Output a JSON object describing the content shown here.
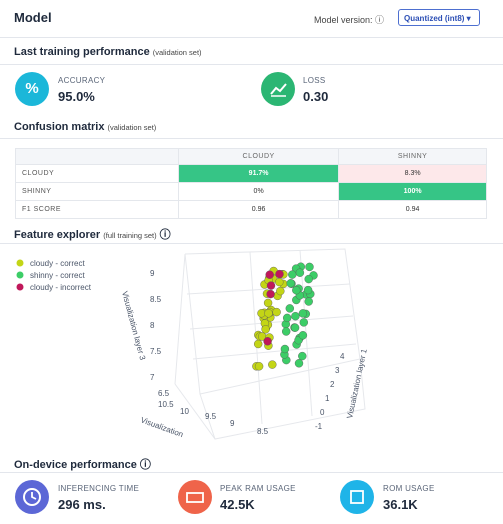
{
  "header": {
    "title": "Model",
    "version_label": "Model version:",
    "version": "Quantized (int8)"
  },
  "training": {
    "title": "Last training performance",
    "note": "(validation set)",
    "metrics": [
      {
        "label": "ACCURACY",
        "value": "95.0%"
      },
      {
        "label": "LOSS",
        "value": "0.30"
      }
    ]
  },
  "confusion": {
    "title": "Confusion matrix",
    "note": "(validation set)",
    "columns": [
      "CLOUDY",
      "SHINNY"
    ],
    "rows": [
      [
        "CLOUDY",
        "91.7%",
        "8.3%"
      ],
      [
        "SHINNY",
        "0%",
        "100%"
      ],
      [
        "F1 SCORE",
        "0.96",
        "0.94"
      ]
    ]
  },
  "explorer": {
    "title": "Feature explorer",
    "note": "(full training set)",
    "legend": [
      {
        "name": "cloudy - correct",
        "color": "#c3d516"
      },
      {
        "name": "shinny - correct",
        "color": "#3ccd67"
      },
      {
        "name": "cloudy - incorrect",
        "color": "#c0185a"
      }
    ],
    "z_axis": {
      "label": "Visualization layer 3",
      "ticks": [
        "9",
        "8.5",
        "8",
        "7.5",
        "7"
      ]
    },
    "y_axis": {
      "label": "Visualization layer 1",
      "ticks": [
        "4",
        "3",
        "2",
        "1",
        "0",
        "-1"
      ]
    },
    "x_axis": {
      "label": "Visualization",
      "ticks": [
        "6.5",
        "10.5",
        "10",
        "9.5",
        "9",
        "8.5"
      ]
    }
  },
  "ondevice": {
    "title": "On-device performance",
    "metrics": [
      {
        "label": "INFERENCING TIME",
        "value": "296 ms."
      },
      {
        "label": "PEAK RAM USAGE",
        "value": "42.5K"
      },
      {
        "label": "ROM USAGE",
        "value": "36.1K"
      }
    ]
  }
}
